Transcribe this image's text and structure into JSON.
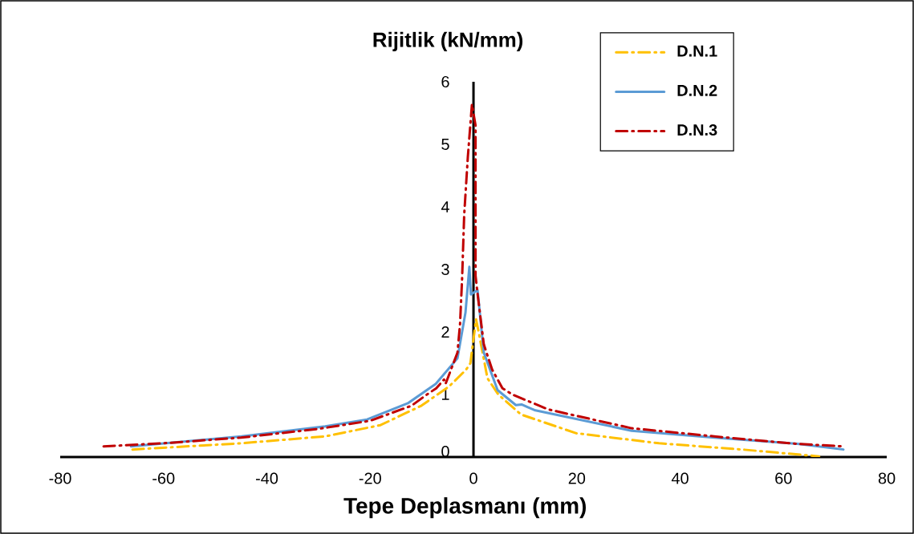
{
  "chart_data": {
    "type": "line",
    "ylabel": "Rijitlik (kN/mm)",
    "xlabel": "Tepe Deplasmanı (mm)",
    "xlim": [
      -80,
      80
    ],
    "ylim": [
      0,
      6
    ],
    "xticks": [
      -80,
      -60,
      -40,
      -20,
      0,
      20,
      40,
      60,
      80
    ],
    "yticks": [
      0,
      1,
      2,
      3,
      4,
      5,
      6
    ],
    "grid": false,
    "legend": "top right",
    "series": [
      {
        "name": "D.N.1",
        "color": "#ffc000",
        "line_style": "dashed",
        "x": [
          -66,
          -44.9,
          -28.7,
          -18,
          -10.1,
          -4.7,
          -1.4,
          -0.6,
          0.5,
          1.0,
          2.7,
          4.8,
          9.2,
          19.9,
          35.9,
          52,
          66.9
        ],
        "values": [
          0.12,
          0.22,
          0.33,
          0.51,
          0.82,
          1.13,
          1.4,
          1.5,
          2.2,
          2.0,
          1.26,
          1.0,
          0.68,
          0.38,
          0.22,
          0.12,
          0.01
        ]
      },
      {
        "name": "D.N.2",
        "color": "#5b9bd5",
        "line_style": "solid",
        "x": [
          -66.3,
          -44.9,
          -28.7,
          -20.6,
          -12.7,
          -7.3,
          -3.6,
          -3.1,
          -1.55,
          -0.8,
          -0.5,
          0.78,
          2.0,
          4.66,
          8.2,
          9.3,
          11.8,
          30.6,
          46.6,
          62.7,
          71.6
        ],
        "values": [
          0.17,
          0.33,
          0.49,
          0.6,
          0.86,
          1.17,
          1.53,
          1.58,
          2.31,
          3.04,
          2.6,
          2.67,
          1.67,
          1.07,
          0.83,
          0.84,
          0.75,
          0.42,
          0.31,
          0.21,
          0.12
        ]
      },
      {
        "name": "D.N.3",
        "color": "#c00000",
        "line_style": "dashed",
        "x": [
          -71.6,
          -60,
          -45,
          -30,
          -20,
          -12,
          -9,
          -7.2,
          -5.7,
          -5.4,
          -3.1,
          -2.6,
          -2.2,
          -1.8,
          -1.1,
          -0.3,
          0.4,
          0.4,
          0.8,
          2.0,
          3.6,
          5.6,
          7.5,
          14.5,
          30.6,
          46.6,
          62.7,
          71.6
        ],
        "values": [
          0.17,
          0.22,
          0.31,
          0.45,
          0.58,
          0.82,
          1.0,
          1.1,
          1.24,
          1.17,
          1.67,
          2.13,
          2.86,
          3.87,
          4.79,
          5.64,
          5.3,
          2.9,
          2.6,
          1.8,
          1.4,
          1.1,
          1.0,
          0.76,
          0.46,
          0.33,
          0.21,
          0.17
        ]
      }
    ]
  }
}
